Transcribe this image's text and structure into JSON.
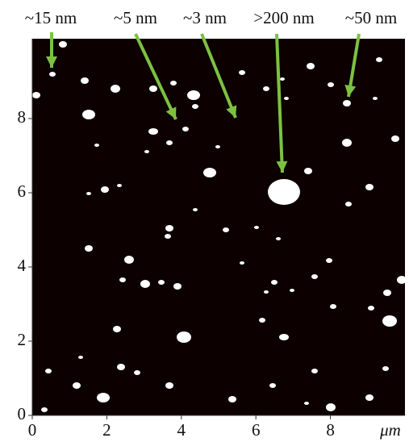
{
  "chart_data": {
    "type": "image",
    "annotations": [
      "~15 nm",
      "~5 nm",
      "~3 nm",
      ">200 nm",
      "~50 nm"
    ],
    "xlabel": "μm",
    "xlim": [
      0,
      10
    ],
    "ylim": [
      0,
      10
    ],
    "xticks": [
      0,
      2,
      4,
      6,
      8
    ],
    "yticks": [
      0,
      2,
      4,
      6,
      8
    ]
  }
}
